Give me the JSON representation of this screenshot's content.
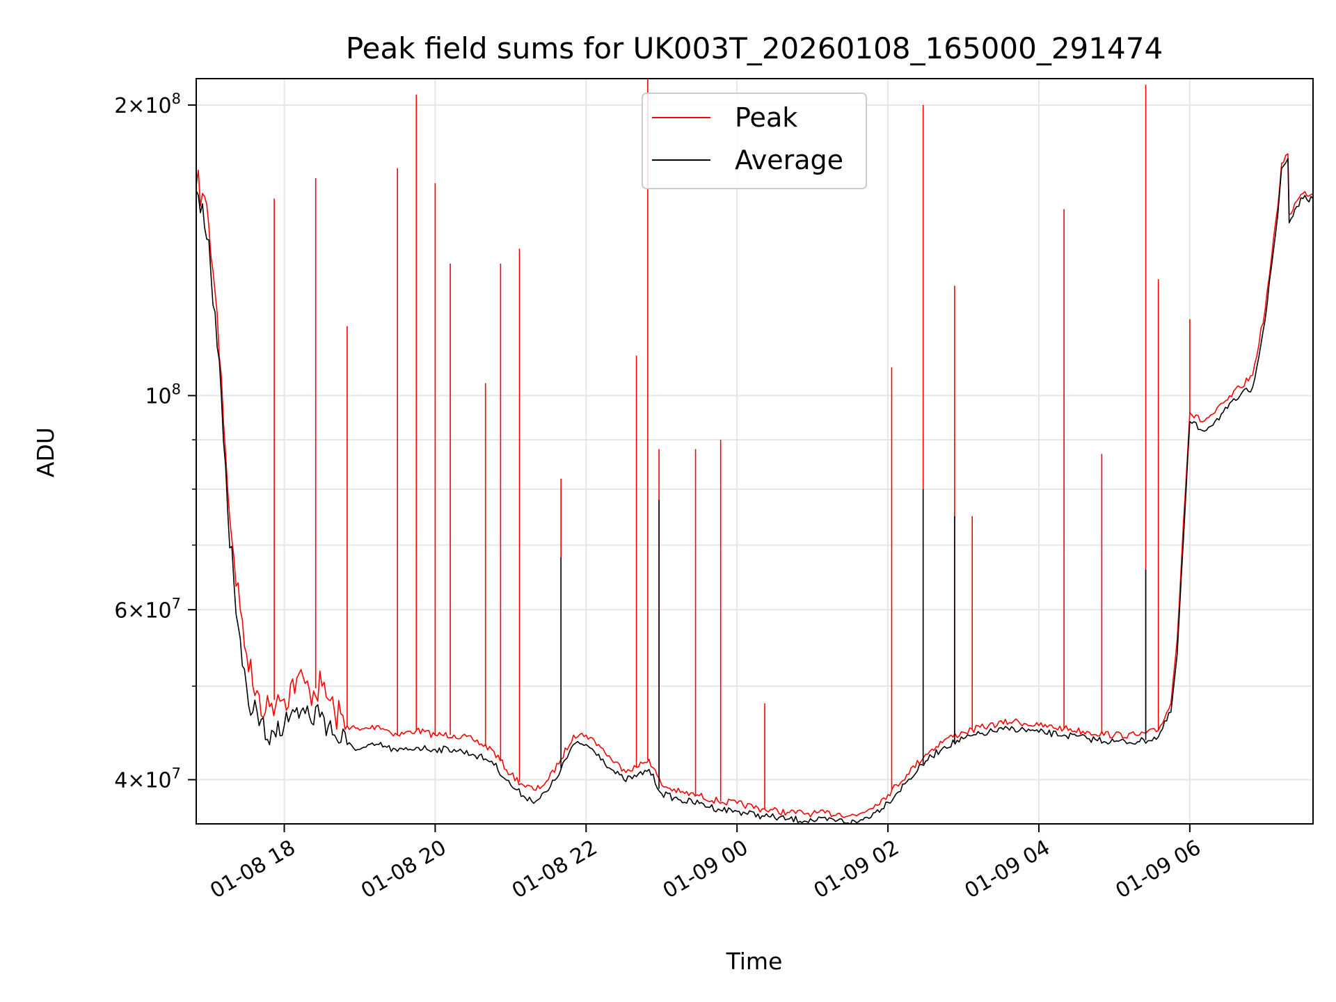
{
  "chart_data": {
    "type": "line",
    "title": "Peak field sums for UK003T_20260108_165000_291474",
    "xlabel": "Time",
    "ylabel": "ADU",
    "yscale": "log",
    "xlim": [
      "2026-01-08T16:50",
      "2026-01-09T07:38"
    ],
    "ylim": [
      36000000,
      213000000
    ],
    "grid": true,
    "legend_position": "top-center",
    "x_ticks": [
      {
        "t": "2026-01-08T18:00",
        "label": "01-08 18"
      },
      {
        "t": "2026-01-08T20:00",
        "label": "01-08 20"
      },
      {
        "t": "2026-01-08T22:00",
        "label": "01-08 22"
      },
      {
        "t": "2026-01-09T00:00",
        "label": "01-09 00"
      },
      {
        "t": "2026-01-09T02:00",
        "label": "01-09 02"
      },
      {
        "t": "2026-01-09T04:00",
        "label": "01-09 04"
      },
      {
        "t": "2026-01-09T06:00",
        "label": "01-09 06"
      }
    ],
    "y_ticks": [
      {
        "v": 40000000,
        "mantissa": "4",
        "exp": "7"
      },
      {
        "v": 60000000,
        "mantissa": "6",
        "exp": "7"
      },
      {
        "v": 100000000,
        "mantissa": "",
        "exp": "8"
      },
      {
        "v": 200000000,
        "mantissa": "2",
        "exp": "8"
      }
    ],
    "y_minor_ticks": [
      50000000,
      70000000,
      80000000,
      90000000
    ],
    "series": [
      {
        "name": "Peak",
        "color": "#ff0000",
        "points": [
          [
            "2026-01-08T16:50",
            165000000
          ],
          [
            "2026-01-08T16:55",
            162000000
          ],
          [
            "2026-01-08T17:00",
            150000000
          ],
          [
            "2026-01-08T17:05",
            128000000
          ],
          [
            "2026-01-08T17:10",
            105000000
          ],
          [
            "2026-01-08T17:15",
            80000000
          ],
          [
            "2026-01-08T17:20",
            68000000
          ],
          [
            "2026-01-08T17:25",
            60000000
          ],
          [
            "2026-01-08T17:30",
            54000000
          ],
          [
            "2026-01-08T17:35",
            50000000
          ],
          [
            "2026-01-08T17:40",
            49000000
          ],
          [
            "2026-01-08T17:45",
            47000000
          ],
          [
            "2026-01-08T17:50",
            48000000
          ],
          [
            "2026-01-08T17:55",
            49000000
          ],
          [
            "2026-01-08T18:00",
            48500000
          ],
          [
            "2026-01-08T18:10",
            51000000
          ],
          [
            "2026-01-08T18:20",
            49500000
          ],
          [
            "2026-01-08T18:30",
            50000000
          ],
          [
            "2026-01-08T18:40",
            47000000
          ],
          [
            "2026-01-08T18:50",
            45500000
          ],
          [
            "2026-01-08T19:00",
            45000000
          ],
          [
            "2026-01-08T19:15",
            45500000
          ],
          [
            "2026-01-08T19:30",
            44500000
          ],
          [
            "2026-01-08T19:45",
            45000000
          ],
          [
            "2026-01-08T20:00",
            44500000
          ],
          [
            "2026-01-08T20:15",
            44500000
          ],
          [
            "2026-01-08T20:30",
            44000000
          ],
          [
            "2026-01-08T20:45",
            43000000
          ],
          [
            "2026-01-08T21:00",
            40500000
          ],
          [
            "2026-01-08T21:10",
            39500000
          ],
          [
            "2026-01-08T21:20",
            39000000
          ],
          [
            "2026-01-08T21:30",
            40000000
          ],
          [
            "2026-01-08T21:40",
            42000000
          ],
          [
            "2026-01-08T21:50",
            44500000
          ],
          [
            "2026-01-08T22:00",
            44500000
          ],
          [
            "2026-01-08T22:10",
            43500000
          ],
          [
            "2026-01-08T22:20",
            42000000
          ],
          [
            "2026-01-08T22:30",
            41000000
          ],
          [
            "2026-01-08T22:40",
            41200000
          ],
          [
            "2026-01-08T22:50",
            42000000
          ],
          [
            "2026-01-08T23:00",
            39500000
          ],
          [
            "2026-01-08T23:15",
            38800000
          ],
          [
            "2026-01-08T23:30",
            38500000
          ],
          [
            "2026-01-08T23:45",
            38000000
          ],
          [
            "2026-01-09T00:00",
            37800000
          ],
          [
            "2026-01-09T00:20",
            37300000
          ],
          [
            "2026-01-09T00:40",
            37000000
          ],
          [
            "2026-01-09T01:00",
            36900000
          ],
          [
            "2026-01-09T01:20",
            36900000
          ],
          [
            "2026-01-09T01:35",
            36700000
          ],
          [
            "2026-01-09T01:50",
            37700000
          ],
          [
            "2026-01-09T02:00",
            38600000
          ],
          [
            "2026-01-09T02:15",
            40500000
          ],
          [
            "2026-01-09T02:30",
            42500000
          ],
          [
            "2026-01-09T02:45",
            44000000
          ],
          [
            "2026-01-09T03:00",
            44800000
          ],
          [
            "2026-01-09T03:20",
            45500000
          ],
          [
            "2026-01-09T03:40",
            46000000
          ],
          [
            "2026-01-09T04:00",
            45500000
          ],
          [
            "2026-01-09T04:20",
            45200000
          ],
          [
            "2026-01-09T04:40",
            44800000
          ],
          [
            "2026-01-09T05:00",
            44500000
          ],
          [
            "2026-01-09T05:20",
            44500000
          ],
          [
            "2026-01-09T05:35",
            45000000
          ],
          [
            "2026-01-09T05:45",
            48000000
          ],
          [
            "2026-01-09T05:50",
            56000000
          ],
          [
            "2026-01-09T05:55",
            74000000
          ],
          [
            "2026-01-09T06:00",
            96000000
          ],
          [
            "2026-01-09T06:10",
            94000000
          ],
          [
            "2026-01-09T06:20",
            96000000
          ],
          [
            "2026-01-09T06:30",
            99000000
          ],
          [
            "2026-01-09T06:40",
            102000000
          ],
          [
            "2026-01-09T06:50",
            105000000
          ],
          [
            "2026-01-09T07:00",
            123000000
          ],
          [
            "2026-01-09T07:10",
            157000000
          ],
          [
            "2026-01-09T07:13",
            174000000
          ],
          [
            "2026-01-09T07:18",
            178000000
          ],
          [
            "2026-01-09T07:19",
            154000000
          ],
          [
            "2026-01-09T07:25",
            159000000
          ],
          [
            "2026-01-09T07:30",
            162000000
          ],
          [
            "2026-01-09T07:38",
            162000000
          ]
        ],
        "spikes": [
          [
            "2026-01-08T17:52",
            160000000
          ],
          [
            "2026-01-08T18:25",
            168000000
          ],
          [
            "2026-01-08T18:50",
            118000000
          ],
          [
            "2026-01-08T19:30",
            172000000
          ],
          [
            "2026-01-08T19:45",
            205000000
          ],
          [
            "2026-01-08T20:00",
            166000000
          ],
          [
            "2026-01-08T20:12",
            137000000
          ],
          [
            "2026-01-08T20:40",
            103000000
          ],
          [
            "2026-01-08T20:52",
            137000000
          ],
          [
            "2026-01-08T21:07",
            142000000
          ],
          [
            "2026-01-08T21:40",
            82000000
          ],
          [
            "2026-01-08T22:40",
            110000000
          ],
          [
            "2026-01-08T22:49",
            215000000
          ],
          [
            "2026-01-08T22:58",
            88000000
          ],
          [
            "2026-01-08T23:27",
            88000000
          ],
          [
            "2026-01-08T23:47",
            90000000
          ],
          [
            "2026-01-09T00:22",
            48000000
          ],
          [
            "2026-01-09T02:03",
            107000000
          ],
          [
            "2026-01-09T02:28",
            200000000
          ],
          [
            "2026-01-09T02:53",
            130000000
          ],
          [
            "2026-01-09T03:07",
            75000000
          ],
          [
            "2026-01-09T04:20",
            156000000
          ],
          [
            "2026-01-09T04:50",
            87000000
          ],
          [
            "2026-01-09T05:25",
            210000000
          ],
          [
            "2026-01-09T05:35",
            132000000
          ],
          [
            "2026-01-09T06:00",
            120000000
          ]
        ]
      },
      {
        "name": "Average",
        "color": "#000000",
        "points": [
          [
            "2026-01-08T16:50",
            163000000
          ],
          [
            "2026-01-08T16:55",
            158000000
          ],
          [
            "2026-01-08T17:00",
            145000000
          ],
          [
            "2026-01-08T17:05",
            122000000
          ],
          [
            "2026-01-08T17:10",
            100000000
          ],
          [
            "2026-01-08T17:15",
            76000000
          ],
          [
            "2026-01-08T17:20",
            64000000
          ],
          [
            "2026-01-08T17:25",
            56000000
          ],
          [
            "2026-01-08T17:30",
            50000000
          ],
          [
            "2026-01-08T17:35",
            47000000
          ],
          [
            "2026-01-08T17:40",
            45500000
          ],
          [
            "2026-01-08T17:45",
            44000000
          ],
          [
            "2026-01-08T17:50",
            45000000
          ],
          [
            "2026-01-08T17:55",
            46000000
          ],
          [
            "2026-01-08T18:00",
            45500000
          ],
          [
            "2026-01-08T18:10",
            47500000
          ],
          [
            "2026-01-08T18:20",
            46500000
          ],
          [
            "2026-01-08T18:30",
            47000000
          ],
          [
            "2026-01-08T18:40",
            44500000
          ],
          [
            "2026-01-08T18:50",
            43500000
          ],
          [
            "2026-01-08T19:00",
            43000000
          ],
          [
            "2026-01-08T19:15",
            43500000
          ],
          [
            "2026-01-08T19:30",
            42800000
          ],
          [
            "2026-01-08T19:45",
            43200000
          ],
          [
            "2026-01-08T20:00",
            43000000
          ],
          [
            "2026-01-08T20:15",
            43000000
          ],
          [
            "2026-01-08T20:30",
            42500000
          ],
          [
            "2026-01-08T20:45",
            41800000
          ],
          [
            "2026-01-08T21:00",
            39500000
          ],
          [
            "2026-01-08T21:10",
            38500000
          ],
          [
            "2026-01-08T21:20",
            38000000
          ],
          [
            "2026-01-08T21:30",
            39000000
          ],
          [
            "2026-01-08T21:40",
            41000000
          ],
          [
            "2026-01-08T21:50",
            43500000
          ],
          [
            "2026-01-08T22:00",
            43500000
          ],
          [
            "2026-01-08T22:10",
            42500000
          ],
          [
            "2026-01-08T22:20",
            41000000
          ],
          [
            "2026-01-08T22:30",
            40000000
          ],
          [
            "2026-01-08T22:40",
            40300000
          ],
          [
            "2026-01-08T22:50",
            41000000
          ],
          [
            "2026-01-08T23:00",
            38700000
          ],
          [
            "2026-01-08T23:15",
            38100000
          ],
          [
            "2026-01-08T23:30",
            37800000
          ],
          [
            "2026-01-08T23:45",
            37300000
          ],
          [
            "2026-01-09T00:00",
            37100000
          ],
          [
            "2026-01-09T00:20",
            36700000
          ],
          [
            "2026-01-09T00:40",
            36400000
          ],
          [
            "2026-01-09T01:00",
            36300000
          ],
          [
            "2026-01-09T01:20",
            36300000
          ],
          [
            "2026-01-09T01:35",
            36100000
          ],
          [
            "2026-01-09T01:50",
            37000000
          ],
          [
            "2026-01-09T02:00",
            37900000
          ],
          [
            "2026-01-09T02:15",
            39800000
          ],
          [
            "2026-01-09T02:30",
            41800000
          ],
          [
            "2026-01-09T02:45",
            43300000
          ],
          [
            "2026-01-09T03:00",
            44100000
          ],
          [
            "2026-01-09T03:20",
            44800000
          ],
          [
            "2026-01-09T03:40",
            45200000
          ],
          [
            "2026-01-09T04:00",
            44800000
          ],
          [
            "2026-01-09T04:20",
            44500000
          ],
          [
            "2026-01-09T04:40",
            44100000
          ],
          [
            "2026-01-09T05:00",
            43800000
          ],
          [
            "2026-01-09T05:20",
            43800000
          ],
          [
            "2026-01-09T05:35",
            44300000
          ],
          [
            "2026-01-09T05:45",
            47000000
          ],
          [
            "2026-01-09T05:50",
            54000000
          ],
          [
            "2026-01-09T05:55",
            71000000
          ],
          [
            "2026-01-09T06:00",
            94000000
          ],
          [
            "2026-01-09T06:10",
            92000000
          ],
          [
            "2026-01-09T06:20",
            94000000
          ],
          [
            "2026-01-09T06:30",
            97000000
          ],
          [
            "2026-01-09T06:40",
            100000000
          ],
          [
            "2026-01-09T06:50",
            102000000
          ],
          [
            "2026-01-09T07:00",
            120000000
          ],
          [
            "2026-01-09T07:10",
            154000000
          ],
          [
            "2026-01-09T07:13",
            172000000
          ],
          [
            "2026-01-09T07:18",
            176000000
          ],
          [
            "2026-01-09T07:19",
            151000000
          ],
          [
            "2026-01-09T07:25",
            157000000
          ],
          [
            "2026-01-09T07:30",
            160000000
          ],
          [
            "2026-01-09T07:38",
            160000000
          ]
        ],
        "spikes": [
          [
            "2026-01-08T21:40",
            68000000
          ],
          [
            "2026-01-08T22:58",
            78000000
          ],
          [
            "2026-01-09T02:28",
            80000000
          ],
          [
            "2026-01-09T02:53",
            75000000
          ],
          [
            "2026-01-09T05:25",
            66000000
          ]
        ]
      }
    ]
  }
}
